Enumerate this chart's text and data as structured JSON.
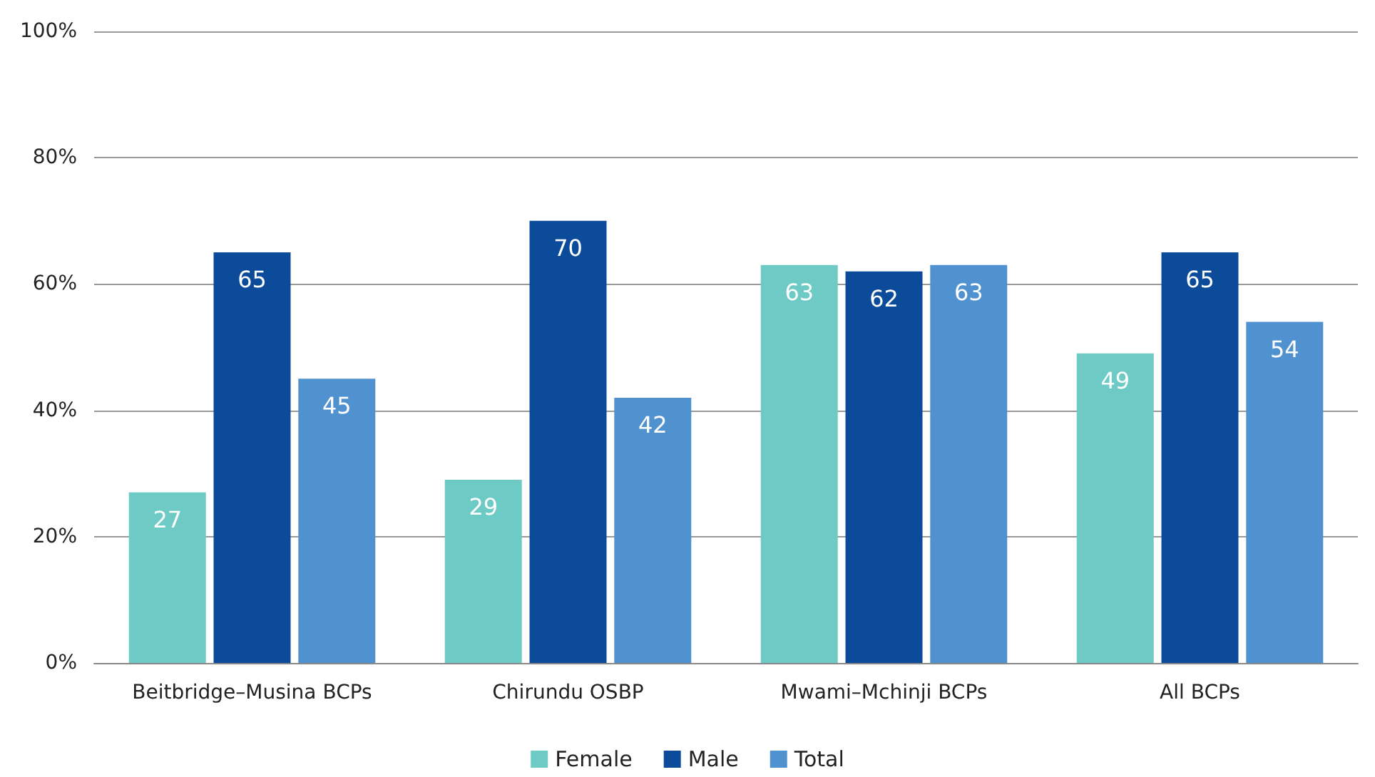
{
  "chart_data": {
    "type": "bar",
    "categories": [
      "Beitbridge–Musina BCPs",
      "Chirundu OSBP",
      "Mwami–Mchinji BCPs",
      "All BCPs"
    ],
    "series": [
      {
        "name": "Female",
        "color": "#6ecac4",
        "values": [
          27,
          29,
          63,
          49
        ]
      },
      {
        "name": "Male",
        "color": "#0b4b9a",
        "values": [
          65,
          70,
          62,
          65
        ]
      },
      {
        "name": "Total",
        "color": "#5092d0",
        "values": [
          45,
          42,
          63,
          54
        ]
      }
    ],
    "ylim": [
      0,
      100
    ],
    "yticks": [
      {
        "value": 0,
        "label": "0%"
      },
      {
        "value": 20,
        "label": "20%"
      },
      {
        "value": 40,
        "label": "40%"
      },
      {
        "value": 60,
        "label": "60%"
      },
      {
        "value": 80,
        "label": "80%"
      },
      {
        "value": 100,
        "label": "100%"
      }
    ],
    "grid": "y",
    "legend": "bottom",
    "data_labels": true
  }
}
